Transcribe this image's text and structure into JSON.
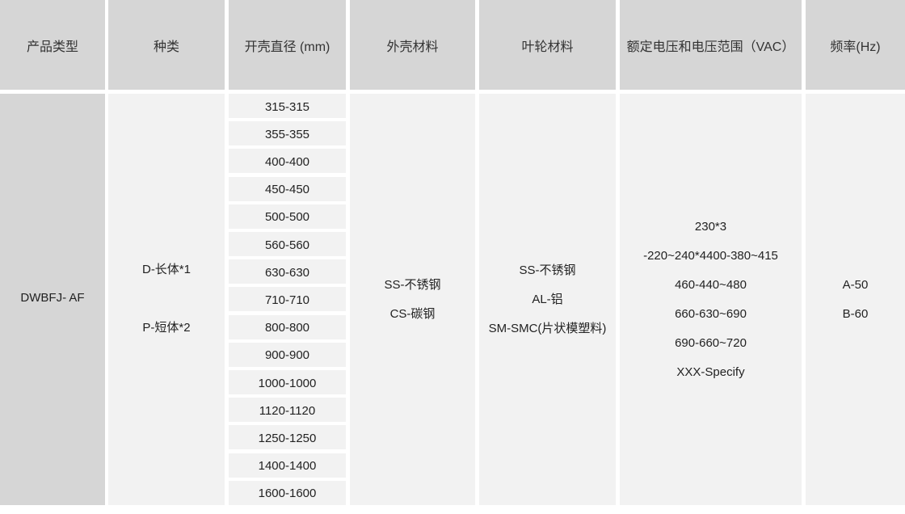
{
  "headers": [
    "产品类型",
    "种类",
    "开壳直径 (mm)",
    "外壳材料",
    "叶轮材料",
    "额定电压和电压范围（VAC）",
    "频率(Hz)"
  ],
  "product_type": "DWBFJ- AF",
  "types": [
    "D-长体*1",
    "P-短体*2"
  ],
  "diameters": [
    "315-315",
    "355-355",
    "400-400",
    "450-450",
    "500-500",
    "560-560",
    "630-630",
    "710-710",
    "800-800",
    "900-900",
    "1000-1000",
    "1120-1120",
    "1250-1250",
    "1400-1400",
    "1600-1600"
  ],
  "housing_materials": [
    "SS-不锈钢",
    "CS-碳钢"
  ],
  "impeller_materials": [
    "SS-不锈钢",
    "AL-铝",
    "SM-SMC(片状模塑料)"
  ],
  "voltages": [
    "230*3",
    "-220~240*4400-380~415",
    "460-440~480",
    "660-630~690",
    "690-660~720",
    "XXX-Specify"
  ],
  "frequencies": [
    "A-50",
    "B-60"
  ]
}
